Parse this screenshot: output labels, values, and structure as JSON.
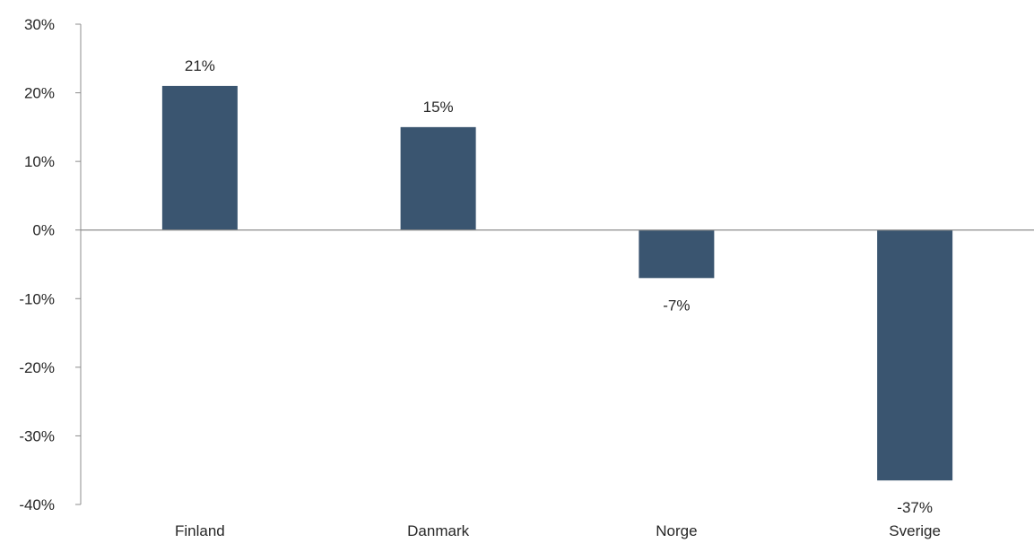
{
  "chart_data": {
    "type": "bar",
    "categories": [
      "Finland",
      "Danmark",
      "Norge",
      "Sverige"
    ],
    "values": [
      21,
      15,
      -7,
      -36.5
    ],
    "data_labels": [
      "21%",
      "15%",
      "-7%",
      "-37%"
    ],
    "title": "",
    "xlabel": "",
    "ylabel": "",
    "ylim": [
      -40,
      30
    ],
    "yticks": [
      30,
      20,
      10,
      0,
      -10,
      -20,
      -30,
      -40
    ],
    "ytick_labels": [
      "30%",
      "20%",
      "10%",
      "0%",
      "-10%",
      "-20%",
      "-30%",
      "-40%"
    ],
    "grid": false,
    "legend": "none",
    "colors": {
      "bar": "#3a5570",
      "axis": "#8c8c8c",
      "text": "#262626"
    }
  }
}
